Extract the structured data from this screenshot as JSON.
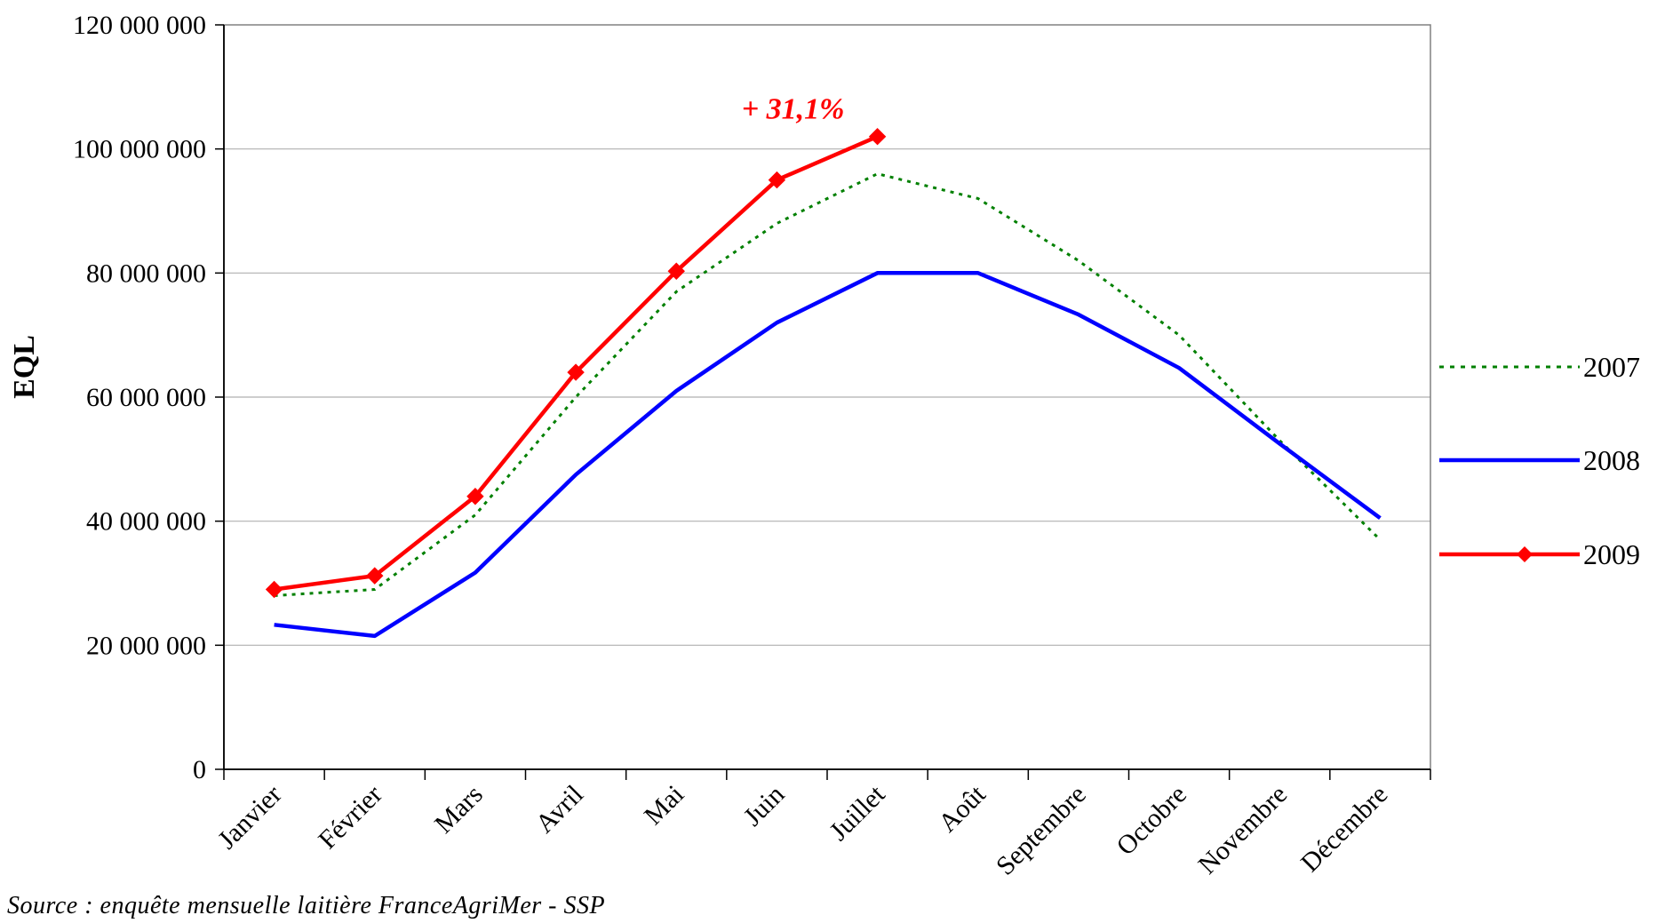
{
  "chart_data": {
    "type": "line",
    "title": "",
    "xlabel": "",
    "ylabel": "EQL",
    "ylim": [
      0,
      120000000
    ],
    "yticks": [
      {
        "value": 0,
        "label": "0"
      },
      {
        "value": 20000000,
        "label": "20 000 000"
      },
      {
        "value": 40000000,
        "label": "40 000 000"
      },
      {
        "value": 60000000,
        "label": "60 000 000"
      },
      {
        "value": 80000000,
        "label": "80 000 000"
      },
      {
        "value": 100000000,
        "label": "100 000 000"
      },
      {
        "value": 120000000,
        "label": "120 000 000"
      }
    ],
    "categories": [
      "Janvier",
      "Février",
      "Mars",
      "Avril",
      "Mai",
      "Juin",
      "Juillet",
      "Août",
      "Septembre",
      "Octobre",
      "Novembre",
      "Décembre"
    ],
    "grid": "horizontal",
    "legend_position": "right",
    "series": [
      {
        "name": "2007",
        "color": "#008000",
        "style": "dotted",
        "marker": "none",
        "values": [
          28000000,
          29000000,
          41000000,
          60000000,
          77000000,
          88000000,
          96000000,
          92000000,
          82000000,
          70000000,
          53000000,
          37000000
        ]
      },
      {
        "name": "2008",
        "color": "#0000ff",
        "style": "solid",
        "marker": "none",
        "values": [
          23300000,
          21500000,
          31700000,
          47500000,
          61000000,
          72000000,
          80000000,
          80000000,
          73300000,
          64700000,
          52500000,
          40500000
        ]
      },
      {
        "name": "2009",
        "color": "#ff0000",
        "style": "solid",
        "marker": "diamond",
        "values": [
          29000000,
          31200000,
          44000000,
          64000000,
          80300000,
          95000000,
          102000000,
          null,
          null,
          null,
          null,
          null
        ]
      }
    ],
    "annotations": [
      {
        "text": "+ 31,1%",
        "series": "2009",
        "category": "Juillet",
        "color": "#ff0000"
      }
    ]
  },
  "source_note": "Source : enquête mensuelle laitière FranceAgriMer - SSP"
}
